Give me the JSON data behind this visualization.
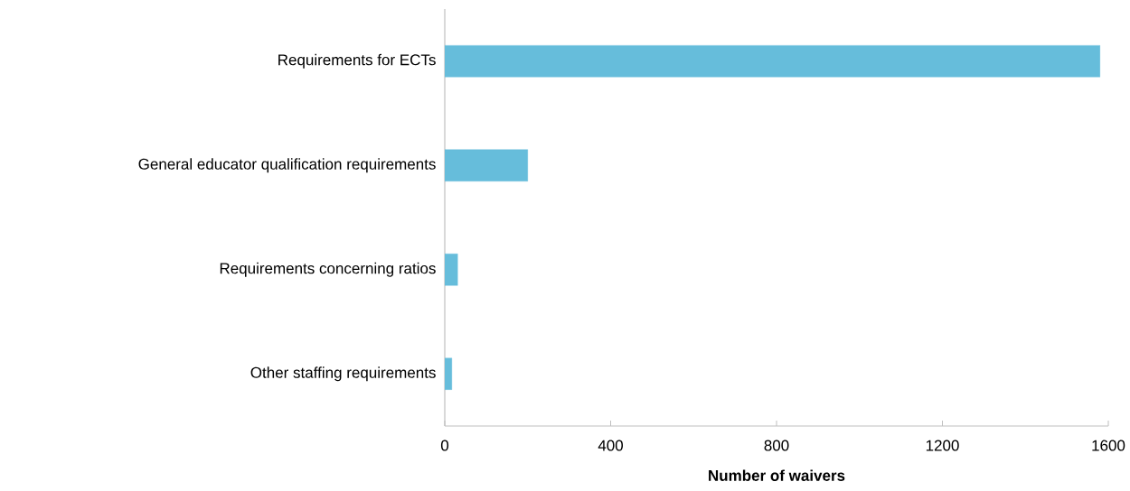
{
  "chart_data": {
    "type": "bar",
    "orientation": "horizontal",
    "xlabel": "Number of waivers",
    "categories": [
      "Requirements for ECTs",
      "General educator qualification requirements",
      "Requirements concerning ratios",
      "Other staffing requirements"
    ],
    "values": [
      1580,
      200,
      31,
      17
    ],
    "color": "#66bddb",
    "xlim": [
      0,
      1600
    ],
    "xticks": [
      0,
      400,
      800,
      1200,
      1600
    ],
    "grid": false
  }
}
